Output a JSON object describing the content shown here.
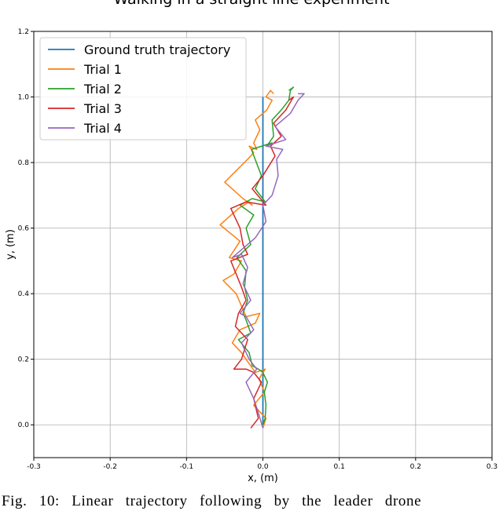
{
  "chart_data": {
    "type": "line",
    "title": "Walking in a straight line experiment",
    "xlabel": "x, (m)",
    "ylabel": "y, (m)",
    "xlim": [
      -0.3,
      0.3
    ],
    "ylim": [
      -0.1,
      1.2
    ],
    "xticks": [
      "-0.3",
      "-0.2",
      "-0.1",
      "0.0",
      "0.1",
      "0.2",
      "0.3"
    ],
    "yticks": [
      "0.0",
      "0.2",
      "0.4",
      "0.6",
      "0.8",
      "1.0",
      "1.2"
    ],
    "xtick_values": [
      -0.3,
      -0.2,
      -0.1,
      0.0,
      0.1,
      0.2,
      0.3
    ],
    "ytick_values": [
      0.0,
      0.2,
      0.4,
      0.6,
      0.8,
      1.0,
      1.2
    ],
    "grid": true,
    "legend_position": "top-left",
    "series": [
      {
        "name": "Ground truth trajectory",
        "color": "#1f77b4",
        "x": [
          0.0,
          0.0
        ],
        "y": [
          0.0,
          1.0
        ]
      },
      {
        "name": "Trial 1",
        "color": "#ff7f0e",
        "x": [
          0.0,
          0.004,
          -0.012,
          0.002,
          -0.005,
          0.003,
          -0.01,
          -0.028,
          -0.04,
          -0.03,
          -0.01,
          -0.004,
          -0.022,
          -0.035,
          -0.052,
          -0.038,
          -0.028,
          -0.044,
          -0.03,
          -0.056,
          -0.032,
          -0.018,
          -0.014,
          -0.026,
          -0.05,
          -0.02,
          -0.012,
          -0.018,
          -0.008,
          -0.012,
          -0.004,
          -0.01,
          0.005,
          0.012,
          0.004,
          0.01,
          0.014
        ],
        "y": [
          -0.01,
          0.02,
          0.06,
          0.1,
          0.14,
          0.17,
          0.16,
          0.22,
          0.25,
          0.29,
          0.31,
          0.34,
          0.33,
          0.4,
          0.44,
          0.46,
          0.5,
          0.51,
          0.56,
          0.61,
          0.66,
          0.68,
          0.67,
          0.69,
          0.74,
          0.81,
          0.83,
          0.85,
          0.84,
          0.86,
          0.9,
          0.93,
          0.96,
          0.99,
          1.0,
          1.02,
          1.01
        ]
      },
      {
        "name": "Trial 2",
        "color": "#2ca02c",
        "x": [
          0.0,
          0.003,
          0.004,
          0.002,
          0.006,
          0.0,
          -0.006,
          -0.014,
          -0.018,
          -0.032,
          -0.016,
          -0.022,
          -0.026,
          -0.02,
          -0.024,
          -0.022,
          -0.034,
          -0.016,
          -0.022,
          -0.012,
          -0.03,
          -0.014,
          0.003,
          -0.01,
          -0.002,
          -0.015,
          0.012,
          0.005,
          0.014,
          0.012,
          0.024,
          0.034,
          0.036,
          0.04,
          0.034
        ],
        "y": [
          0.0,
          0.02,
          0.06,
          0.1,
          0.13,
          0.16,
          0.17,
          0.18,
          0.22,
          0.26,
          0.28,
          0.32,
          0.34,
          0.38,
          0.42,
          0.47,
          0.51,
          0.55,
          0.6,
          0.64,
          0.67,
          0.69,
          0.68,
          0.72,
          0.76,
          0.84,
          0.86,
          0.85,
          0.88,
          0.93,
          0.96,
          0.99,
          1.02,
          1.03,
          1.02
        ]
      },
      {
        "name": "Trial 3",
        "color": "#d62728",
        "x": [
          -0.016,
          -0.006,
          -0.012,
          -0.002,
          -0.012,
          -0.022,
          -0.038,
          -0.028,
          -0.02,
          -0.036,
          -0.032,
          -0.022,
          -0.028,
          -0.042,
          -0.02,
          -0.026,
          -0.03,
          -0.042,
          -0.022,
          0.004,
          -0.014,
          0.0,
          0.016,
          0.01,
          0.024,
          0.014,
          0.03,
          0.04,
          0.034
        ],
        "y": [
          -0.01,
          0.02,
          0.08,
          0.13,
          0.16,
          0.17,
          0.17,
          0.2,
          0.26,
          0.3,
          0.34,
          0.38,
          0.42,
          0.5,
          0.52,
          0.55,
          0.6,
          0.66,
          0.68,
          0.67,
          0.72,
          0.76,
          0.82,
          0.85,
          0.88,
          0.92,
          0.96,
          1.0,
          0.99
        ]
      },
      {
        "name": "Trial 4",
        "color": "#9467bd",
        "x": [
          0.0,
          -0.005,
          -0.012,
          -0.022,
          -0.008,
          -0.018,
          -0.028,
          -0.012,
          -0.022,
          -0.03,
          -0.016,
          -0.026,
          -0.02,
          -0.028,
          -0.04,
          -0.01,
          0.004,
          0.0,
          0.012,
          0.02,
          0.018,
          0.026,
          0.004,
          0.03,
          0.016,
          0.036,
          0.046,
          0.054,
          0.046
        ],
        "y": [
          -0.01,
          0.03,
          0.08,
          0.13,
          0.17,
          0.2,
          0.25,
          0.29,
          0.33,
          0.34,
          0.38,
          0.43,
          0.48,
          0.52,
          0.51,
          0.57,
          0.62,
          0.67,
          0.7,
          0.76,
          0.81,
          0.84,
          0.85,
          0.87,
          0.91,
          0.95,
          0.99,
          1.01,
          1.01
        ]
      }
    ]
  },
  "caption": "Fig. 10: Linear trajectory following by the leader drone"
}
